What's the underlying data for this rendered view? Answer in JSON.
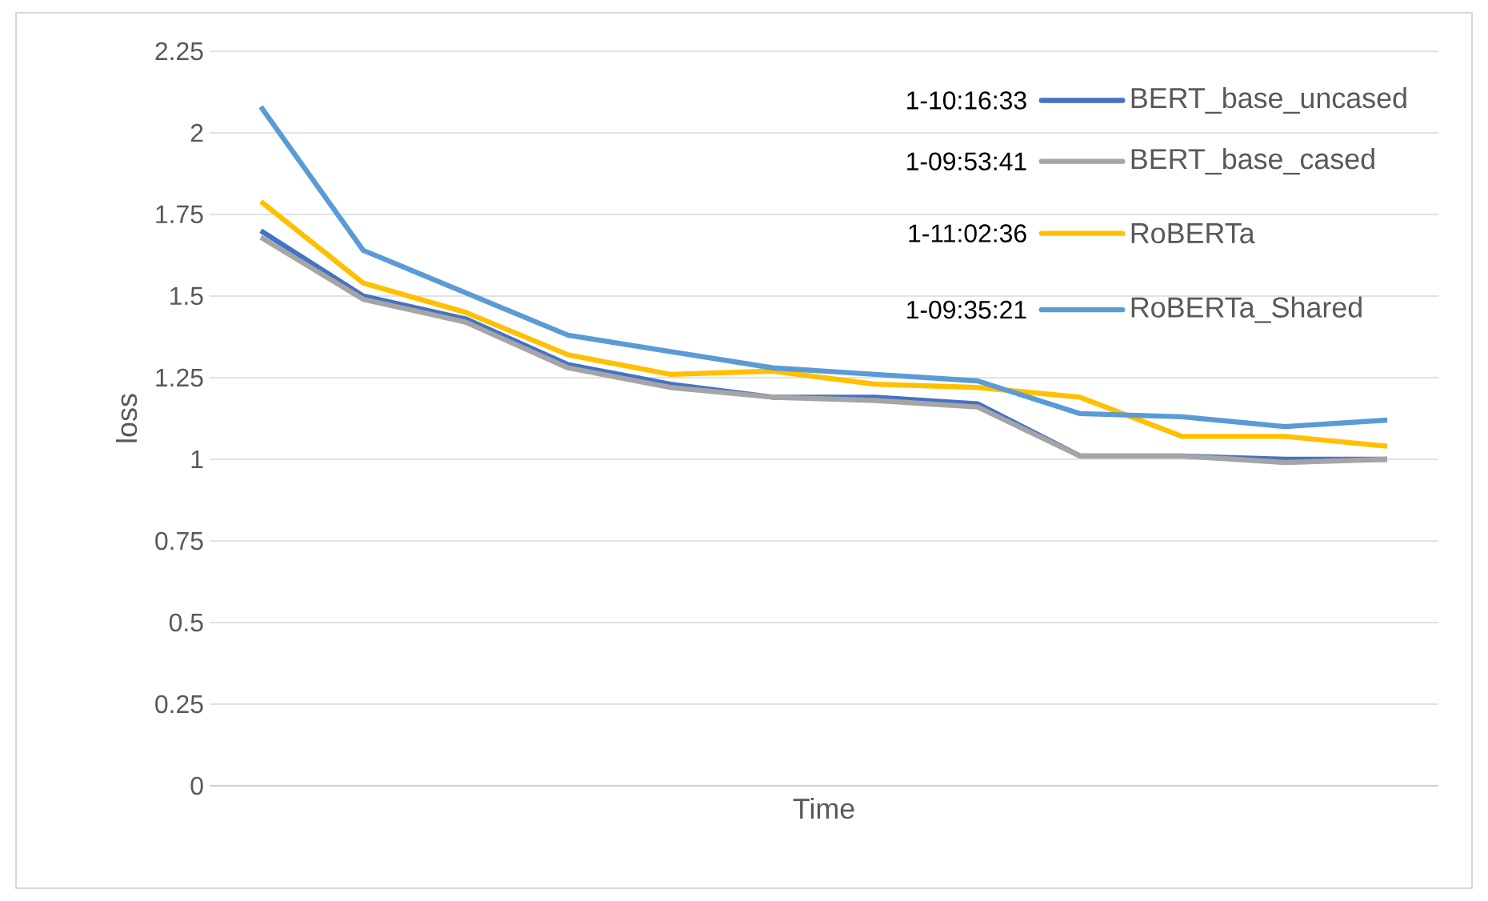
{
  "chart_data": {
    "type": "line",
    "xlabel": "Time",
    "ylabel": "loss",
    "categories": [
      null,
      null,
      null,
      null,
      null,
      null,
      null,
      null,
      null,
      null,
      null,
      null
    ],
    "series": [
      {
        "name": "BERT_base_uncased",
        "color": "#4472c4",
        "values": [
          1.7,
          1.5,
          1.43,
          1.29,
          1.23,
          1.19,
          1.19,
          1.17,
          1.01,
          1.01,
          1.0,
          1.0
        ]
      },
      {
        "name": "BERT_base_cased",
        "color": "#a5a5a5",
        "values": [
          1.68,
          1.49,
          1.42,
          1.28,
          1.22,
          1.19,
          1.18,
          1.16,
          1.01,
          1.01,
          0.99,
          1.0
        ]
      },
      {
        "name": "RoBERTa",
        "color": "#ffc000",
        "values": [
          1.79,
          1.54,
          1.45,
          1.32,
          1.26,
          1.27,
          1.23,
          1.22,
          1.19,
          1.07,
          1.07,
          1.04
        ]
      },
      {
        "name": "RoBERTa_Shared",
        "color": "#5b9bd5",
        "values": [
          2.08,
          1.64,
          1.51,
          1.38,
          1.33,
          1.28,
          1.26,
          1.24,
          1.14,
          1.13,
          1.1,
          1.12
        ]
      }
    ],
    "annotations": [
      "1-10:16:33",
      "1-09:53:41",
      "1-11:02:36",
      "1-09:35:21"
    ],
    "ylim": [
      0,
      2.25
    ],
    "yticks": [
      0,
      0.25,
      0.5,
      0.75,
      1,
      1.25,
      1.5,
      1.75,
      2,
      2.25
    ],
    "grid": "y",
    "legend": "top right",
    "marker": "none",
    "line_style": "solid"
  }
}
